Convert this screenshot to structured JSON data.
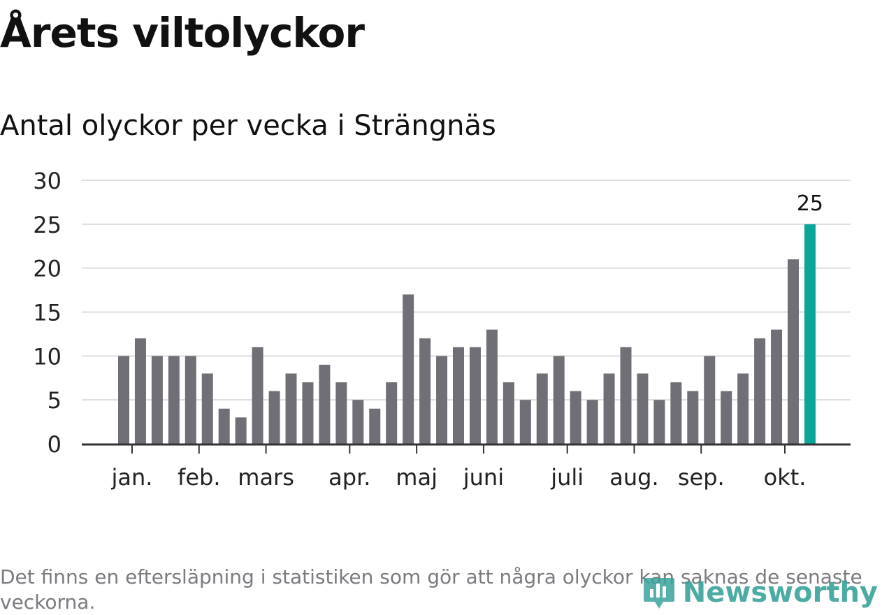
{
  "title": "Årets viltolyckor",
  "subtitle": "Antal olyckor per vecka i Strängnäs",
  "footnote": "Det finns en eftersläpning i statistiken som gör att några olyckor kan saknas de senaste veckorna.",
  "logo": {
    "text": "Newsworthy",
    "icon": "newsworthy-logo-icon"
  },
  "colors": {
    "bar": "#706f75",
    "highlight": "#0aa69a",
    "grid": "#dddddd",
    "axis": "#333333",
    "text": "#222222"
  },
  "chart_data": {
    "type": "bar",
    "title": "Årets viltolyckor",
    "subtitle": "Antal olyckor per vecka i Strängnäs",
    "xlabel": "",
    "ylabel": "",
    "ylim": [
      0,
      30
    ],
    "yticks": [
      "0",
      "5",
      "10",
      "15",
      "20",
      "25",
      "30"
    ],
    "grid": true,
    "legend": "none",
    "values": [
      10,
      12,
      10,
      10,
      10,
      8,
      4,
      3,
      11,
      6,
      8,
      7,
      9,
      7,
      5,
      4,
      7,
      17,
      12,
      10,
      11,
      11,
      13,
      7,
      5,
      8,
      10,
      6,
      5,
      8,
      11,
      8,
      5,
      7,
      6,
      10,
      6,
      8,
      12,
      13,
      21,
      25
    ],
    "highlight_index": 41,
    "highlight_label": "25",
    "month_labels": [
      {
        "label": "jan.",
        "bar_index": 0.5
      },
      {
        "label": "feb.",
        "bar_index": 4.5
      },
      {
        "label": "mars",
        "bar_index": 8.5
      },
      {
        "label": "apr.",
        "bar_index": 13.5
      },
      {
        "label": "maj",
        "bar_index": 17.5
      },
      {
        "label": "juni",
        "bar_index": 21.5
      },
      {
        "label": "juli",
        "bar_index": 26.5
      },
      {
        "label": "aug.",
        "bar_index": 30.5
      },
      {
        "label": "sep.",
        "bar_index": 34.5
      },
      {
        "label": "okt.",
        "bar_index": 39.5
      }
    ]
  }
}
